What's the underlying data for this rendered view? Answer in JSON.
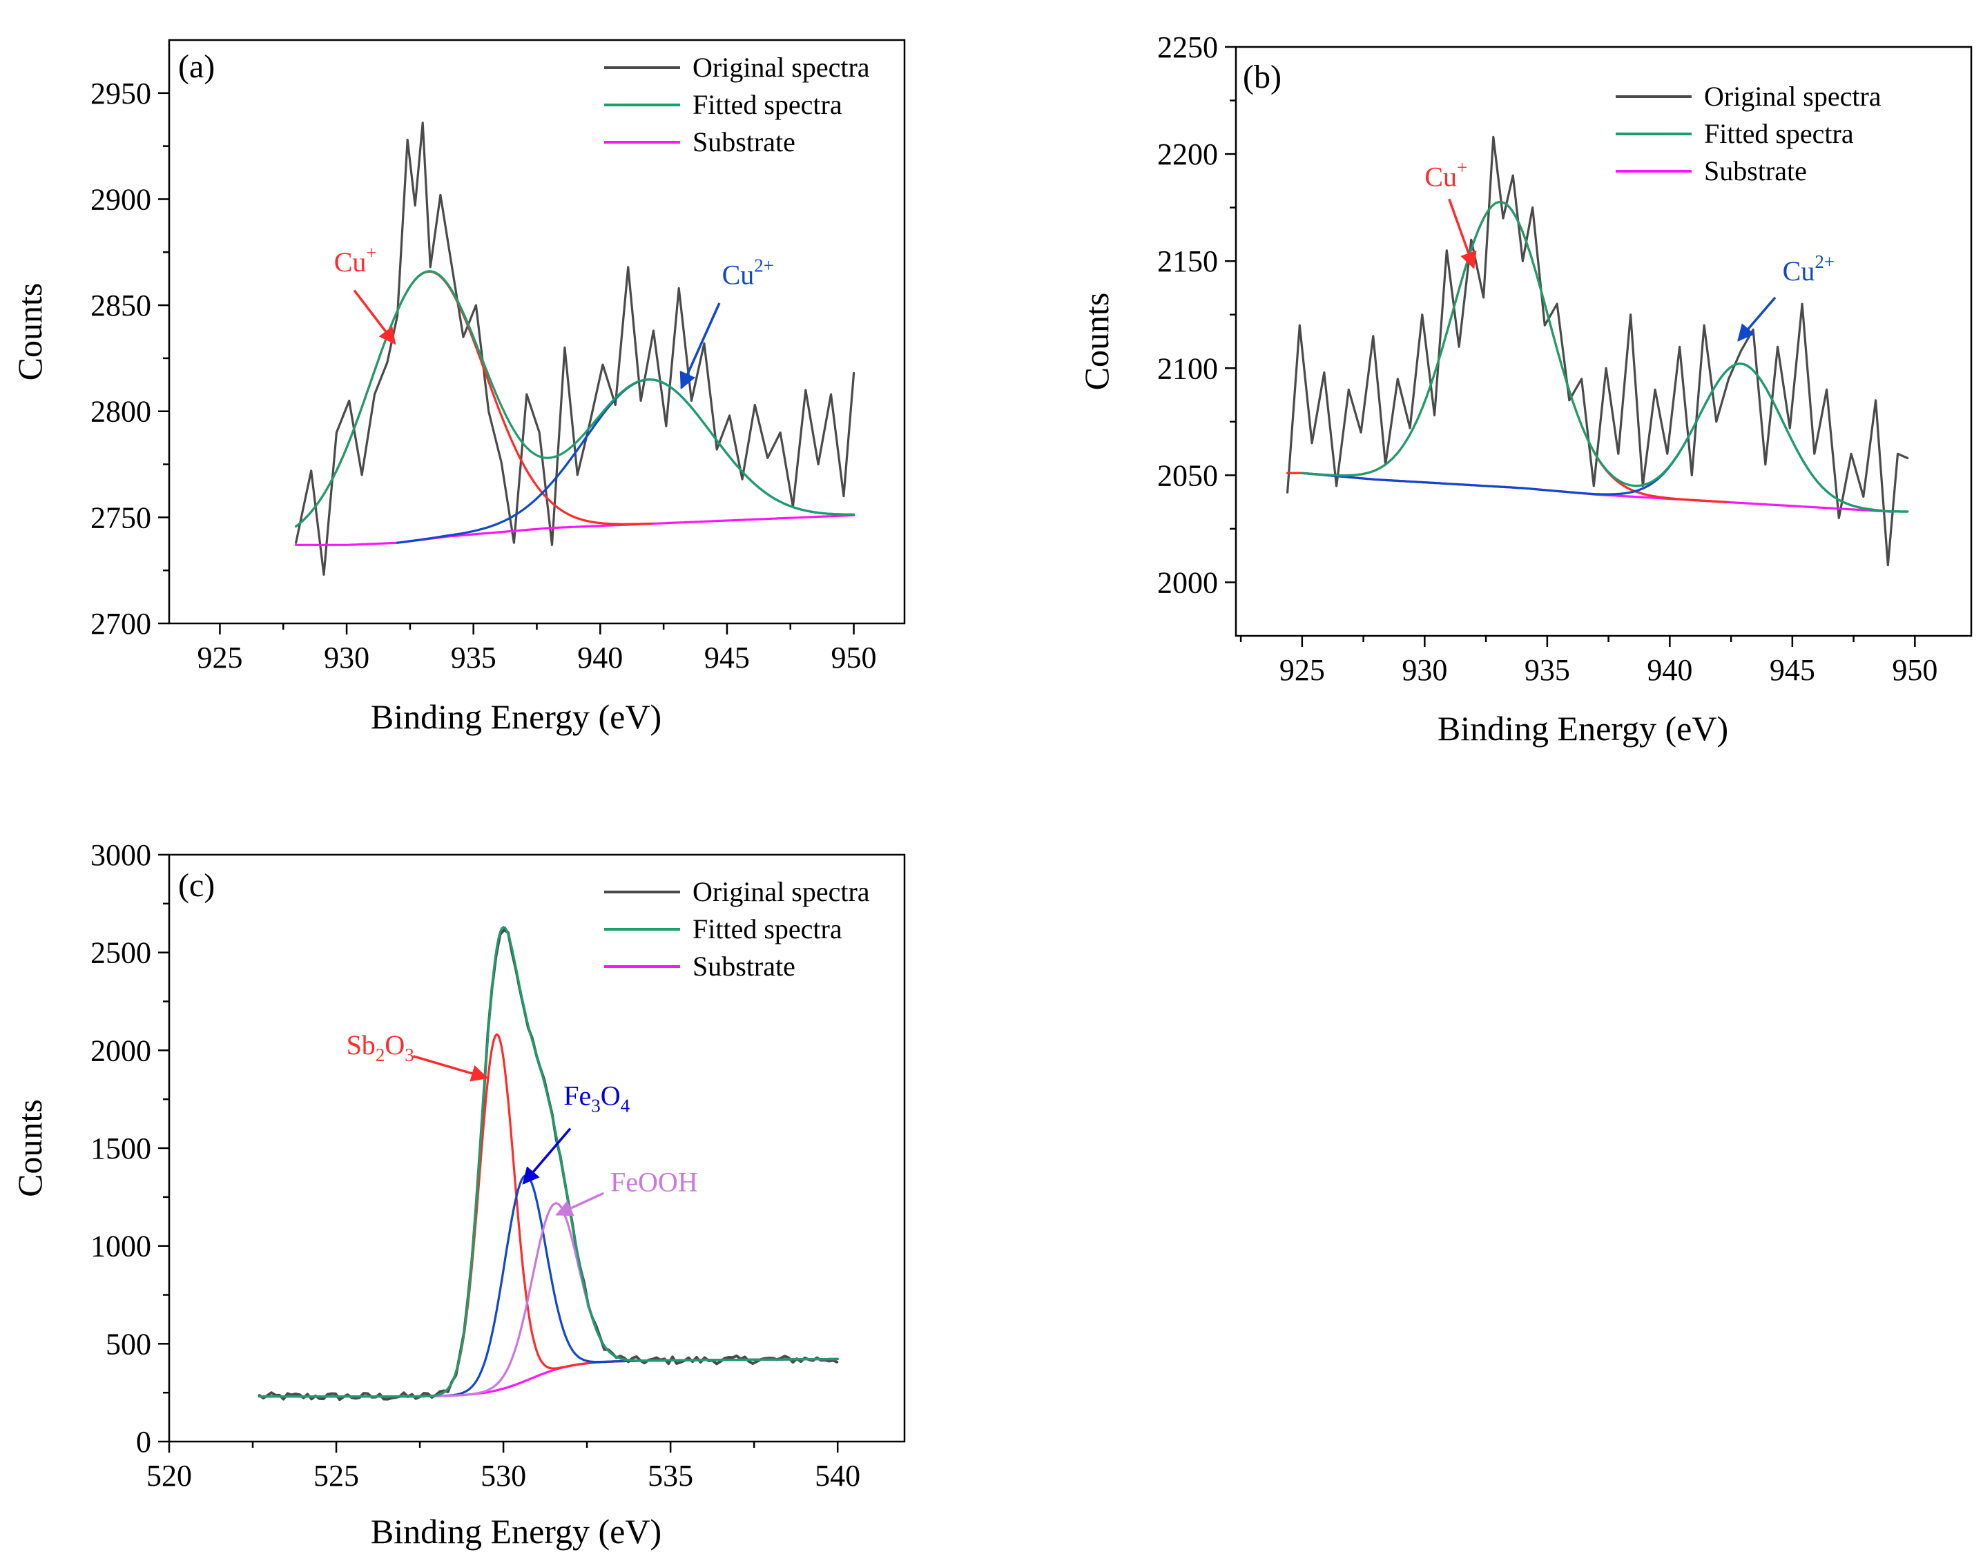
{
  "colors": {
    "original": "#4a4a4a",
    "fitted": "#1a9e6a",
    "substrate": "#ff14ff",
    "red": "#ff2a2a",
    "blue": "#1048cc",
    "violet": "#cc77dd",
    "arrow_blue": "#0000dd"
  },
  "chart_data": [
    {
      "id": "a",
      "type": "line",
      "panel_label": "(a)",
      "xlabel": "Binding Energy (eV)",
      "ylabel": "Counts",
      "xlim": [
        923,
        952
      ],
      "ylim": [
        2700,
        2975
      ],
      "xticks": [
        925,
        930,
        935,
        940,
        945,
        950
      ],
      "yticks": [
        2700,
        2750,
        2800,
        2850,
        2900,
        2950
      ],
      "legend": {
        "position": "top-right",
        "entries": [
          "Original spectra",
          "Fitted spectra",
          "Substrate"
        ]
      },
      "annotations": [
        {
          "base": "Cu",
          "sup": "+",
          "color_key": "red",
          "text_x": 929.5,
          "text_y": 2866,
          "arrow_from": [
            930.3,
            2857
          ],
          "arrow_to": [
            931.9,
            2832
          ]
        },
        {
          "base": "Cu",
          "sup": "2+",
          "color_key": "blue",
          "text_x": 944.8,
          "text_y": 2860,
          "arrow_from": [
            944.7,
            2851
          ],
          "arrow_to": [
            943.2,
            2811
          ]
        }
      ],
      "series": [
        {
          "name": "Original spectra",
          "kind": "noisy",
          "x": [
            928.0,
            928.6,
            929.1,
            929.6,
            930.1,
            930.6,
            931.1,
            931.6,
            932.0,
            932.4,
            932.7,
            933.0,
            933.3,
            933.7,
            934.1,
            934.6,
            935.1,
            935.6,
            936.1,
            936.6,
            937.1,
            937.6,
            938.1,
            938.6,
            939.1,
            939.6,
            940.1,
            940.6,
            941.1,
            941.6,
            942.1,
            942.6,
            943.1,
            943.6,
            944.1,
            944.6,
            945.1,
            945.6,
            946.1,
            946.6,
            947.1,
            947.6,
            948.1,
            948.6,
            949.1,
            949.6,
            950.0
          ],
          "y": [
            2738,
            2772,
            2723,
            2790,
            2805,
            2770,
            2808,
            2823,
            2845,
            2928,
            2897,
            2936,
            2868,
            2902,
            2872,
            2835,
            2850,
            2800,
            2776,
            2738,
            2808,
            2790,
            2737,
            2830,
            2770,
            2795,
            2822,
            2803,
            2868,
            2805,
            2838,
            2793,
            2858,
            2805,
            2832,
            2782,
            2798,
            2768,
            2803,
            2778,
            2790,
            2755,
            2810,
            2775,
            2808,
            2760,
            2818
          ]
        },
        {
          "name": "Fitted spectra",
          "kind": "model",
          "color_key": "fitted",
          "substrate_key": "a_sub",
          "peaks": [
            {
              "center": 933.2,
              "amplitude": 126,
              "sigma": 2.25
            },
            {
              "center": 941.9,
              "amplitude": 68,
              "sigma": 2.5
            }
          ],
          "x_range": [
            928.0,
            950.0
          ]
        },
        {
          "name": "Cu+ component",
          "kind": "model",
          "color_key": "red",
          "substrate_key": "a_sub",
          "peaks": [
            {
              "center": 933.2,
              "amplitude": 126,
              "sigma": 2.25
            }
          ],
          "x_range": [
            928.0,
            942.0
          ]
        },
        {
          "name": "Cu2+ component",
          "kind": "model",
          "color_key": "blue",
          "substrate_key": "a_sub",
          "peaks": [
            {
              "center": 941.9,
              "amplitude": 68,
              "sigma": 2.5
            }
          ],
          "x_range": [
            932.0,
            950.0
          ]
        },
        {
          "name": "Substrate",
          "kind": "substrate",
          "color_key": "substrate",
          "id": "a_sub",
          "x": [
            928.0,
            930.0,
            932.0,
            934.0,
            936.0,
            938.0,
            940.0,
            942.0,
            944.0,
            946.0,
            948.0,
            950.0
          ],
          "y": [
            2737,
            2737,
            2738,
            2741,
            2743,
            2745,
            2746,
            2747,
            2748,
            2749,
            2750,
            2751
          ]
        }
      ]
    },
    {
      "id": "b",
      "type": "line",
      "panel_label": "(b)",
      "xlabel": "Binding Energy (eV)",
      "ylabel": "Counts",
      "xlim": [
        922.3,
        952.3
      ],
      "ylim": [
        1975,
        2250
      ],
      "xticks": [
        925,
        930,
        935,
        940,
        945,
        950
      ],
      "yticks": [
        2000,
        2050,
        2100,
        2150,
        2200,
        2250
      ],
      "legend": {
        "position": "top-right",
        "entries": [
          "Original spectra",
          "Fitted spectra",
          "Substrate"
        ]
      },
      "annotations": [
        {
          "base": "Cu",
          "sup": "+",
          "color_key": "red",
          "text_x": 930.0,
          "text_y": 2185,
          "arrow_from": [
            931.0,
            2179
          ],
          "arrow_to": [
            932.0,
            2147
          ]
        },
        {
          "base": "Cu",
          "sup": "2+",
          "color_key": "blue",
          "text_x": 944.6,
          "text_y": 2141,
          "arrow_from": [
            944.3,
            2133
          ],
          "arrow_to": [
            942.8,
            2113
          ]
        }
      ],
      "series": [
        {
          "name": "Original spectra",
          "kind": "noisy",
          "x": [
            924.4,
            924.9,
            925.4,
            925.9,
            926.4,
            926.9,
            927.4,
            927.9,
            928.4,
            928.9,
            929.4,
            929.9,
            930.4,
            930.9,
            931.4,
            931.9,
            932.4,
            932.8,
            933.2,
            933.6,
            934.0,
            934.4,
            934.9,
            935.4,
            935.9,
            936.4,
            936.9,
            937.4,
            937.9,
            938.4,
            938.9,
            939.4,
            939.9,
            940.4,
            940.9,
            941.4,
            941.9,
            942.4,
            942.9,
            943.4,
            943.9,
            944.4,
            944.9,
            945.4,
            945.9,
            946.4,
            946.9,
            947.4,
            947.9,
            948.4,
            948.9,
            949.3,
            949.7
          ],
          "y": [
            2042,
            2120,
            2065,
            2098,
            2045,
            2090,
            2070,
            2115,
            2055,
            2095,
            2072,
            2125,
            2078,
            2155,
            2110,
            2160,
            2133,
            2208,
            2170,
            2190,
            2150,
            2175,
            2120,
            2130,
            2085,
            2095,
            2045,
            2100,
            2060,
            2125,
            2045,
            2090,
            2060,
            2110,
            2050,
            2120,
            2075,
            2095,
            2108,
            2118,
            2055,
            2110,
            2072,
            2130,
            2060,
            2090,
            2030,
            2060,
            2040,
            2085,
            2008,
            2060,
            2058
          ]
        },
        {
          "name": "Fitted spectra",
          "kind": "model",
          "color_key": "fitted",
          "substrate_key": "b_sub",
          "peaks": [
            {
              "center": 933.1,
              "amplitude": 133,
              "sigma": 1.95
            },
            {
              "center": 942.9,
              "amplitude": 65,
              "sigma": 1.7
            }
          ],
          "x_range": [
            925.0,
            949.7
          ]
        },
        {
          "name": "Cu+ component",
          "kind": "model",
          "color_key": "red",
          "substrate_key": "b_sub",
          "peaks": [
            {
              "center": 933.1,
              "amplitude": 133,
              "sigma": 1.95
            }
          ],
          "x_range": [
            924.4,
            942.3
          ]
        },
        {
          "name": "Cu2+ component",
          "kind": "model",
          "color_key": "blue",
          "substrate_key": "b_sub",
          "peaks": [
            {
              "center": 942.9,
              "amplitude": 65,
              "sigma": 1.7
            }
          ],
          "x_range": [
            925.0,
            949.7
          ]
        },
        {
          "name": "Substrate",
          "kind": "substrate",
          "color_key": "substrate",
          "id": "b_sub",
          "x": [
            925.0,
            928.0,
            931.0,
            934.0,
            937.0,
            940.0,
            943.0,
            946.0,
            949.0
          ],
          "y": [
            2051,
            2048,
            2046,
            2044,
            2041,
            2039,
            2037,
            2035,
            2033
          ]
        }
      ]
    },
    {
      "id": "c",
      "type": "line",
      "panel_label": "(c)",
      "xlabel": "Binding Energy (eV)",
      "ylabel": "Counts",
      "xlim": [
        520,
        542
      ],
      "ylim": [
        0,
        3000
      ],
      "xticks": [
        520,
        525,
        530,
        535,
        540
      ],
      "yticks": [
        0,
        500,
        1000,
        1500,
        2000,
        2500,
        3000
      ],
      "legend": {
        "position": "top-right",
        "entries": [
          "Original spectra",
          "Fitted spectra",
          "Substrate"
        ]
      },
      "annotations": [
        {
          "base": "Sb",
          "subs": [
            "2",
            "3"
          ],
          "mid": "O",
          "color_key": "red",
          "text_x": 525.3,
          "text_y": 1980,
          "arrow_from": [
            527.3,
            1970
          ],
          "arrow_to": [
            529.5,
            1860
          ]
        },
        {
          "base": "Fe",
          "subs": [
            "3",
            "4"
          ],
          "mid": "O",
          "color_key": "arrow_blue",
          "text_x": 531.8,
          "text_y": 1720,
          "arrow_from": [
            532.0,
            1600
          ],
          "arrow_to": [
            530.6,
            1320
          ]
        },
        {
          "text": "FeOOH",
          "color_key": "violet",
          "text_x": 533.2,
          "text_y": 1280,
          "arrow_from": [
            533.0,
            1270
          ],
          "arrow_to": [
            531.6,
            1160
          ]
        }
      ],
      "series": [
        {
          "name": "Original spectra",
          "kind": "fitted_noisy",
          "component_keys": [
            "c_sb",
            "c_fe",
            "c_feooh"
          ],
          "substrate_key": "c_sub",
          "x_range": [
            522.7,
            540.0
          ]
        },
        {
          "name": "Fitted spectra",
          "kind": "model",
          "color_key": "fitted",
          "substrate_key": "c_sub",
          "peaks": [
            {
              "center": 529.8,
              "amplitude": 1820,
              "sigma": 0.52
            },
            {
              "center": 530.65,
              "amplitude": 1050,
              "sigma": 0.62
            },
            {
              "center": 531.55,
              "amplitude": 850,
              "sigma": 0.68
            }
          ],
          "x_range": [
            522.7,
            540.0
          ]
        },
        {
          "name": "Sb2O3",
          "kind": "model",
          "color_key": "red",
          "id": "c_sb",
          "substrate_key": "c_sub",
          "peaks": [
            {
              "center": 529.8,
              "amplitude": 1820,
              "sigma": 0.52
            }
          ],
          "x_range": [
            522.7,
            540.0
          ]
        },
        {
          "name": "Fe3O4",
          "kind": "model",
          "color_key": "blue",
          "id": "c_fe",
          "substrate_key": "c_sub",
          "peaks": [
            {
              "center": 530.65,
              "amplitude": 1050,
              "sigma": 0.62
            }
          ],
          "x_range": [
            522.7,
            540.0
          ]
        },
        {
          "name": "FeOOH",
          "kind": "model",
          "color_key": "violet",
          "id": "c_feooh",
          "substrate_key": "c_sub",
          "peaks": [
            {
              "center": 531.55,
              "amplitude": 850,
              "sigma": 0.68
            }
          ],
          "x_range": [
            522.7,
            540.0
          ]
        },
        {
          "name": "Substrate",
          "kind": "substrate",
          "color_key": "substrate",
          "id": "c_sub",
          "sigmoid": {
            "low": 230,
            "high": 410,
            "center": 530.8,
            "width": 0.65
          },
          "x_range": [
            522.7,
            540.0
          ],
          "slope": 1.3
        }
      ]
    }
  ]
}
